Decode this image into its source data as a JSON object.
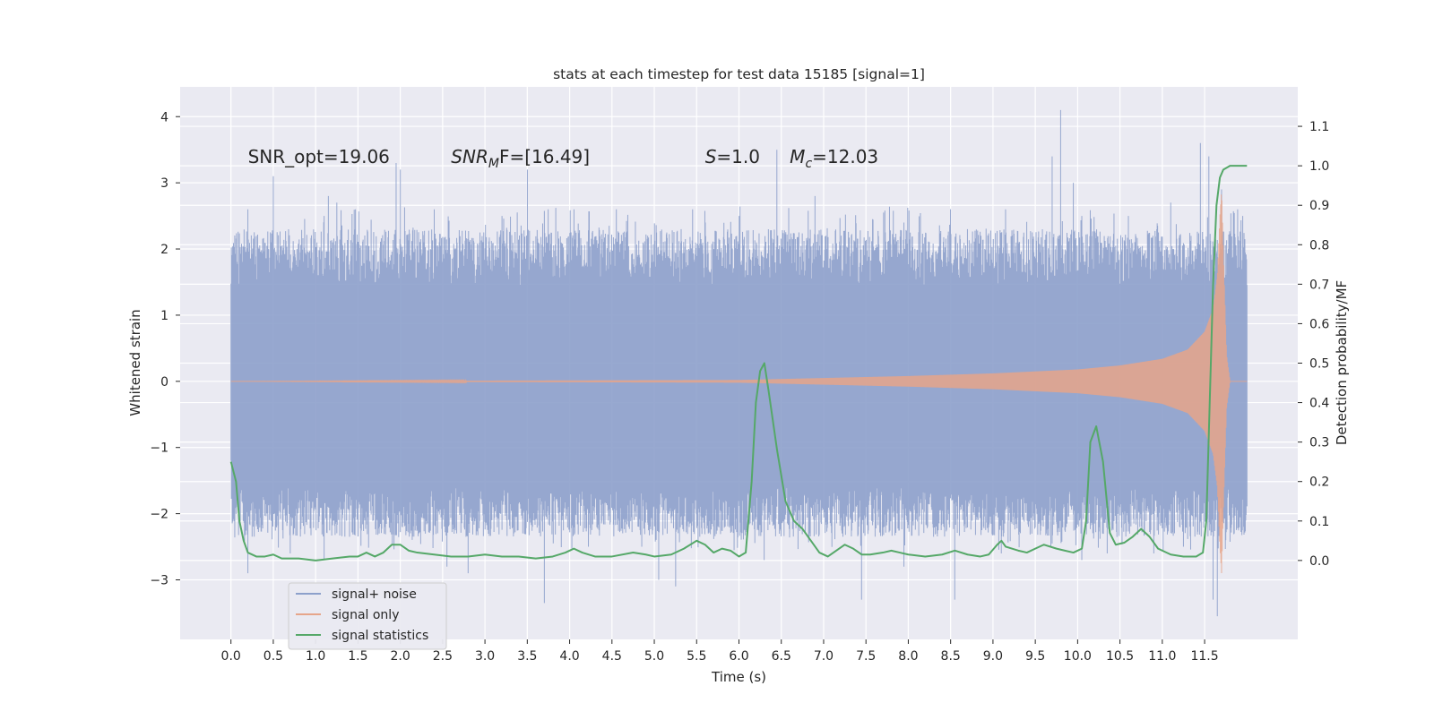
{
  "chart_data": {
    "type": "line",
    "title": "stats at each timestep for test data 15185 [signal=1]",
    "xlabel": "Time (s)",
    "ylabel_left": "Whitened strain",
    "ylabel_right": "Detection probability/MF",
    "xlim": [
      -0.6,
      12.6
    ],
    "ylim_left": [
      -3.9,
      4.45
    ],
    "ylim_right": [
      -0.2,
      1.2
    ],
    "x_ticks": [
      "0.0",
      "0.5",
      "1.0",
      "1.5",
      "2.0",
      "2.5",
      "3.0",
      "3.5",
      "4.0",
      "4.5",
      "5.0",
      "5.5",
      "6.0",
      "6.5",
      "7.0",
      "7.5",
      "8.0",
      "8.5",
      "9.0",
      "9.5",
      "10.0",
      "10.5",
      "11.0",
      "11.5"
    ],
    "y_ticks_left": [
      "−3",
      "−2",
      "−1",
      "0",
      "1",
      "2",
      "3",
      "4"
    ],
    "y_ticks_right": [
      "0.0",
      "0.1",
      "0.2",
      "0.3",
      "0.4",
      "0.5",
      "0.6",
      "0.7",
      "0.8",
      "0.9",
      "1.0",
      "1.1"
    ],
    "grid": true,
    "background": "#eaeaf2",
    "annotations": [
      {
        "name": "snr-opt",
        "text": "SNR_opt=19.06",
        "x": 0.2,
        "y": 3.3
      },
      {
        "name": "snr-mf",
        "prefix": "SNR",
        "sub": "M",
        "suffix": "F=[16.49]",
        "x": 2.6,
        "y": 3.3
      },
      {
        "name": "s-value",
        "prefix": "S",
        "suffix": "=1.0",
        "x": 5.6,
        "y": 3.3
      },
      {
        "name": "mc-value",
        "prefix": "M",
        "sub": "c",
        "suffix": "=12.03",
        "x": 6.6,
        "y": 3.3
      }
    ],
    "legend": {
      "placement": "lower-left",
      "entries": [
        {
          "label": "signal+ noise",
          "color": "#8da0cb"
        },
        {
          "label": "signal only",
          "color": "#dd8452"
        },
        {
          "label": "signal statistics",
          "color": "#55a868"
        }
      ]
    },
    "series": [
      {
        "name": "signal+ noise",
        "axis": "left",
        "color": "#8da0cb",
        "x_range": [
          0.0,
          12.0
        ],
        "band_min": -1.6,
        "band_max": 1.45,
        "peaks_up": [
          [
            0.2,
            2.6
          ],
          [
            0.5,
            3.1
          ],
          [
            1.1,
            2.5
          ],
          [
            1.15,
            2.8
          ],
          [
            1.25,
            2.7
          ],
          [
            1.95,
            3.3
          ],
          [
            2.0,
            3.2
          ],
          [
            2.4,
            2.6
          ],
          [
            3.2,
            2.5
          ],
          [
            3.5,
            3.2
          ],
          [
            4.05,
            2.6
          ],
          [
            4.55,
            2.6
          ],
          [
            5.45,
            2.6
          ],
          [
            5.6,
            2.4
          ],
          [
            6.0,
            2.5
          ],
          [
            6.45,
            3.5
          ],
          [
            6.9,
            2.8
          ],
          [
            7.95,
            2.4
          ],
          [
            8.7,
            2.3
          ],
          [
            9.15,
            2.6
          ],
          [
            9.7,
            3.4
          ],
          [
            9.8,
            4.1
          ],
          [
            9.95,
            3.0
          ],
          [
            10.05,
            2.5
          ],
          [
            10.6,
            2.5
          ],
          [
            11.1,
            2.7
          ],
          [
            11.45,
            3.6
          ],
          [
            11.55,
            3.4
          ],
          [
            11.7,
            2.9
          ],
          [
            11.95,
            2.5
          ]
        ],
        "peaks_down": [
          [
            0.0,
            -1.2
          ],
          [
            0.2,
            -2.9
          ],
          [
            0.7,
            -2.6
          ],
          [
            1.1,
            -2.7
          ],
          [
            1.75,
            -2.3
          ],
          [
            2.55,
            -2.8
          ],
          [
            2.8,
            -2.9
          ],
          [
            3.7,
            -3.35
          ],
          [
            4.85,
            -2.5
          ],
          [
            5.05,
            -3.0
          ],
          [
            5.25,
            -3.1
          ],
          [
            6.3,
            -2.7
          ],
          [
            7.45,
            -3.3
          ],
          [
            7.95,
            -2.8
          ],
          [
            8.55,
            -3.3
          ],
          [
            9.1,
            -2.6
          ],
          [
            10.05,
            -2.7
          ],
          [
            10.35,
            -2.6
          ],
          [
            10.9,
            -2.6
          ],
          [
            11.25,
            -2.5
          ],
          [
            11.6,
            -3.3
          ],
          [
            11.65,
            -3.55
          ],
          [
            11.75,
            -2.4
          ],
          [
            11.85,
            -2.3
          ]
        ]
      },
      {
        "name": "signal only",
        "axis": "left",
        "color": "#dd8452",
        "x_range": [
          0.0,
          12.0
        ],
        "envelope": [
          [
            0.0,
            0.0
          ],
          [
            6.0,
            0.02
          ],
          [
            7.0,
            0.05
          ],
          [
            8.0,
            0.08
          ],
          [
            9.0,
            0.12
          ],
          [
            10.0,
            0.18
          ],
          [
            10.5,
            0.24
          ],
          [
            11.0,
            0.34
          ],
          [
            11.3,
            0.48
          ],
          [
            11.5,
            0.75
          ],
          [
            11.6,
            1.1
          ],
          [
            11.65,
            1.6
          ],
          [
            11.68,
            2.5
          ],
          [
            11.7,
            2.9
          ],
          [
            11.72,
            2.0
          ],
          [
            11.76,
            0.4
          ],
          [
            11.8,
            0.0
          ],
          [
            12.0,
            0.0
          ]
        ]
      },
      {
        "name": "signal statistics",
        "axis": "right",
        "color": "#55a868",
        "points": [
          [
            0.0,
            0.25
          ],
          [
            0.06,
            0.2
          ],
          [
            0.1,
            0.1
          ],
          [
            0.15,
            0.05
          ],
          [
            0.2,
            0.02
          ],
          [
            0.3,
            0.01
          ],
          [
            0.4,
            0.01
          ],
          [
            0.5,
            0.015
          ],
          [
            0.6,
            0.005
          ],
          [
            0.8,
            0.005
          ],
          [
            1.0,
            0.0
          ],
          [
            1.2,
            0.005
          ],
          [
            1.4,
            0.01
          ],
          [
            1.5,
            0.01
          ],
          [
            1.6,
            0.02
          ],
          [
            1.7,
            0.01
          ],
          [
            1.8,
            0.02
          ],
          [
            1.9,
            0.04
          ],
          [
            2.0,
            0.04
          ],
          [
            2.1,
            0.025
          ],
          [
            2.2,
            0.02
          ],
          [
            2.4,
            0.015
          ],
          [
            2.6,
            0.01
          ],
          [
            2.8,
            0.01
          ],
          [
            3.0,
            0.015
          ],
          [
            3.2,
            0.01
          ],
          [
            3.4,
            0.01
          ],
          [
            3.6,
            0.005
          ],
          [
            3.8,
            0.01
          ],
          [
            3.95,
            0.02
          ],
          [
            4.05,
            0.03
          ],
          [
            4.15,
            0.02
          ],
          [
            4.3,
            0.01
          ],
          [
            4.5,
            0.01
          ],
          [
            4.75,
            0.02
          ],
          [
            4.9,
            0.015
          ],
          [
            5.0,
            0.01
          ],
          [
            5.2,
            0.015
          ],
          [
            5.35,
            0.03
          ],
          [
            5.5,
            0.05
          ],
          [
            5.6,
            0.04
          ],
          [
            5.7,
            0.02
          ],
          [
            5.8,
            0.03
          ],
          [
            5.9,
            0.025
          ],
          [
            6.0,
            0.01
          ],
          [
            6.08,
            0.02
          ],
          [
            6.15,
            0.2
          ],
          [
            6.2,
            0.4
          ],
          [
            6.25,
            0.48
          ],
          [
            6.3,
            0.5
          ],
          [
            6.35,
            0.43
          ],
          [
            6.45,
            0.28
          ],
          [
            6.55,
            0.15
          ],
          [
            6.65,
            0.1
          ],
          [
            6.75,
            0.08
          ],
          [
            6.85,
            0.05
          ],
          [
            6.95,
            0.02
          ],
          [
            7.05,
            0.01
          ],
          [
            7.15,
            0.025
          ],
          [
            7.25,
            0.04
          ],
          [
            7.35,
            0.03
          ],
          [
            7.45,
            0.015
          ],
          [
            7.55,
            0.015
          ],
          [
            7.7,
            0.02
          ],
          [
            7.8,
            0.025
          ],
          [
            7.9,
            0.02
          ],
          [
            8.0,
            0.015
          ],
          [
            8.2,
            0.01
          ],
          [
            8.4,
            0.015
          ],
          [
            8.55,
            0.025
          ],
          [
            8.7,
            0.015
          ],
          [
            8.85,
            0.01
          ],
          [
            8.95,
            0.015
          ],
          [
            9.05,
            0.04
          ],
          [
            9.1,
            0.05
          ],
          [
            9.15,
            0.035
          ],
          [
            9.3,
            0.025
          ],
          [
            9.4,
            0.02
          ],
          [
            9.5,
            0.03
          ],
          [
            9.6,
            0.04
          ],
          [
            9.75,
            0.03
          ],
          [
            9.85,
            0.025
          ],
          [
            9.95,
            0.02
          ],
          [
            10.05,
            0.03
          ],
          [
            10.1,
            0.1
          ],
          [
            10.15,
            0.3
          ],
          [
            10.22,
            0.34
          ],
          [
            10.3,
            0.25
          ],
          [
            10.38,
            0.07
          ],
          [
            10.45,
            0.04
          ],
          [
            10.55,
            0.045
          ],
          [
            10.65,
            0.06
          ],
          [
            10.75,
            0.08
          ],
          [
            10.85,
            0.06
          ],
          [
            10.95,
            0.03
          ],
          [
            11.1,
            0.015
          ],
          [
            11.25,
            0.01
          ],
          [
            11.4,
            0.01
          ],
          [
            11.48,
            0.02
          ],
          [
            11.52,
            0.1
          ],
          [
            11.56,
            0.4
          ],
          [
            11.6,
            0.7
          ],
          [
            11.64,
            0.9
          ],
          [
            11.68,
            0.97
          ],
          [
            11.72,
            0.99
          ],
          [
            11.8,
            1.0
          ],
          [
            11.9,
            1.0
          ],
          [
            12.0,
            1.0
          ]
        ]
      }
    ]
  }
}
